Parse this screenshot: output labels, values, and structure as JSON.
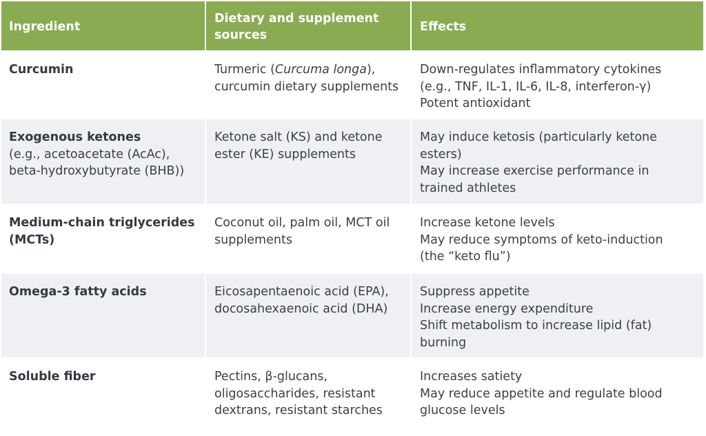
{
  "header": {
    "ingredient": "Ingredient",
    "sources_line1": "Dietary and supplement",
    "sources_line2": "sources",
    "effects": "Effects"
  },
  "rows": [
    {
      "ingredient": [
        "Curcumin"
      ],
      "ingredient_sub": [],
      "sources": [
        "Turmeric (",
        "Curcuma longa",
        "),",
        "curcumin dietary supplements"
      ],
      "effects": [
        "Down-regulates inflammatory cytokines",
        "(e.g., TNF, IL-1, IL-6, IL-8, interferon-γ)",
        "Potent antioxidant"
      ]
    },
    {
      "ingredient": [
        "Exogenous ketones"
      ],
      "ingredient_sub": [
        "(e.g., acetoacetate (AcAc),",
        "beta-hydroxybutyrate (BHB))"
      ],
      "sources": [
        "Ketone salt (KS) and ketone",
        "ester (KE) supplements"
      ],
      "effects": [
        "May induce ketosis (particularly ketone",
        "esters)",
        "May increase exercise performance in",
        "trained athletes"
      ]
    },
    {
      "ingredient": [
        "Medium-chain triglycerides",
        "(MCTs)"
      ],
      "ingredient_sub": [],
      "sources": [
        "Coconut oil, palm oil, MCT oil",
        "supplements"
      ],
      "effects": [
        "Increase ketone levels",
        "May reduce symptoms of keto-induction",
        "(the “keto flu”)"
      ]
    },
    {
      "ingredient": [
        "Omega-3 fatty acids"
      ],
      "ingredient_sub": [],
      "sources": [
        "Eicosapentaenoic acid (EPA),",
        "docosahexaenoic acid (DHA)"
      ],
      "effects": [
        "Suppress appetite",
        "Increase energy expenditure",
        "Shift metabolism to increase lipid (fat)",
        "burning"
      ]
    },
    {
      "ingredient": [
        "Soluble fiber"
      ],
      "ingredient_sub": [],
      "sources": [
        "Pectins, β-glucans,",
        "oligosaccharides, resistant",
        "dextrans, resistant starches"
      ],
      "effects": [
        "Increases satiety",
        "May reduce appetite and regulate blood",
        "glucose levels"
      ]
    }
  ],
  "colors": {
    "header_bg": "#8aab52",
    "row_shade": "#eef0f3",
    "text": "#3a3f44"
  }
}
